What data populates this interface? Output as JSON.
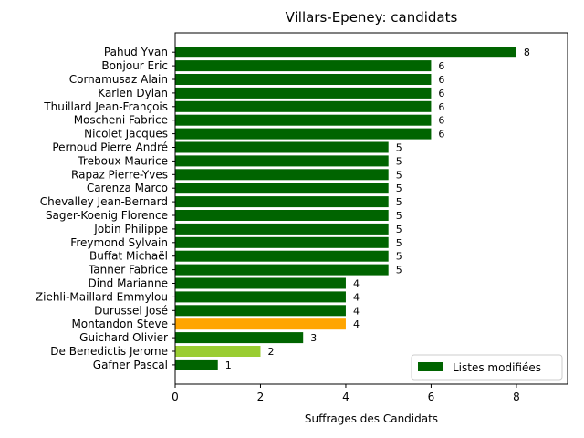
{
  "chart_data": {
    "type": "bar",
    "orientation": "horizontal",
    "title": "Villars-Epeney: candidats",
    "xlabel": "Suffrages des Candidats",
    "ylabel": "",
    "xlim": [
      0,
      9.2
    ],
    "xticks": [
      0,
      2,
      4,
      6,
      8
    ],
    "grid": false,
    "legend": {
      "placement": "lower-right",
      "entries": [
        {
          "label": "Listes modifiées",
          "color": "#006400"
        }
      ]
    },
    "categories": [
      "Pahud Yvan",
      "Bonjour Eric",
      "Cornamusaz Alain",
      "Karlen Dylan",
      "Thuillard Jean-François",
      "Moscheni Fabrice",
      "Nicolet Jacques",
      "Pernoud Pierre André",
      "Treboux Maurice",
      "Rapaz Pierre-Yves",
      "Carenza Marco",
      "Chevalley Jean-Bernard",
      "Sager-Koenig Florence",
      "Jobin Philippe",
      "Freymond Sylvain",
      "Buffat Michaël",
      "Tanner Fabrice",
      "Dind Marianne",
      "Ziehli-Maillard Emmylou",
      "Durussel José",
      "Montandon Steve",
      "Guichard Olivier",
      "De Benedictis Jerome",
      "Gafner Pascal"
    ],
    "values": [
      8,
      6,
      6,
      6,
      6,
      6,
      6,
      5,
      5,
      5,
      5,
      5,
      5,
      5,
      5,
      5,
      5,
      4,
      4,
      4,
      4,
      3,
      2,
      1
    ],
    "bar_colors": [
      "#006400",
      "#006400",
      "#006400",
      "#006400",
      "#006400",
      "#006400",
      "#006400",
      "#006400",
      "#006400",
      "#006400",
      "#006400",
      "#006400",
      "#006400",
      "#006400",
      "#006400",
      "#006400",
      "#006400",
      "#006400",
      "#006400",
      "#006400",
      "#FFA500",
      "#006400",
      "#9ACD32",
      "#006400"
    ]
  }
}
